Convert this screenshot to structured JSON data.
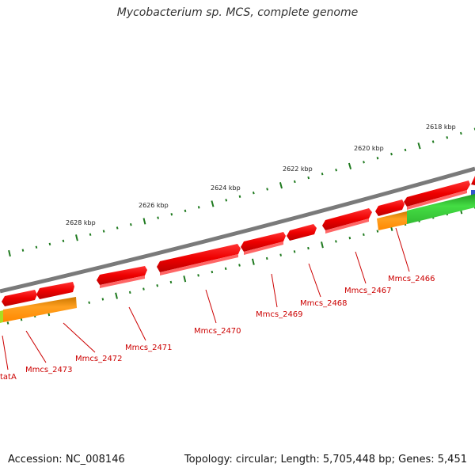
{
  "title": "Mycobacterium sp. MCS, complete genome",
  "accession": "Accession: NC_008146",
  "topology": "Topology: circular; Length: 5,705,448 bp; Genes: 5,451",
  "kbp_labels": [
    "2618 kbp",
    "2620 kbp",
    "2622 kbp",
    "2624 kbp",
    "2626 kbp",
    "2628 kbp"
  ],
  "gene_labels": [
    "Mmcs_2466",
    "Mmcs_2467",
    "Mmcs_2468",
    "Mmcs_2469",
    "Mmcs_2470",
    "Mmcs_2471",
    "Mmcs_2472",
    "Mmcs_2473",
    "tatA"
  ],
  "colors": {
    "gene_red": "#ee0000",
    "gene_orange": "#ff9900",
    "gene_green": "#33cc33",
    "backbone": "#808080",
    "tick_green": "#228822",
    "label_red": "#cc0000"
  }
}
